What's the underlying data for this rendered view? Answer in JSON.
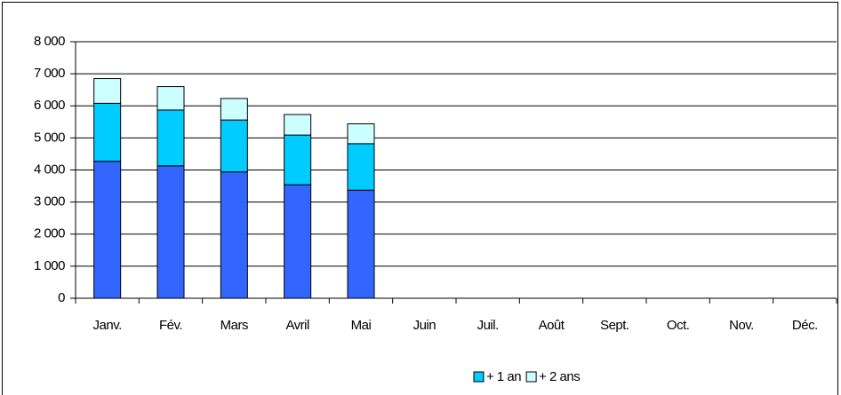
{
  "chart_data": {
    "type": "bar",
    "stacked": true,
    "categories": [
      "Janv.",
      "Fév.",
      "Mars",
      "Avril",
      "Mai",
      "Juin",
      "Juil.",
      "Août",
      "Sept.",
      "Oct.",
      "Nov.",
      "Déc."
    ],
    "series": [
      {
        "color": "#3366ff",
        "values": [
          4270,
          4130,
          3940,
          3540,
          3370,
          null,
          null,
          null,
          null,
          null,
          null,
          null
        ]
      },
      {
        "name": "+ 1 an",
        "color": "#00ccff",
        "values": [
          1810,
          1740,
          1620,
          1550,
          1450,
          null,
          null,
          null,
          null,
          null,
          null,
          null
        ]
      },
      {
        "name": "+ 2 ans",
        "color": "#ccffff",
        "values": [
          770,
          730,
          670,
          640,
          620,
          null,
          null,
          null,
          null,
          null,
          null,
          null
        ]
      }
    ],
    "ylim": [
      0,
      8000
    ],
    "yticks": [
      0,
      {
        "value": 1000,
        "label": "1 000"
      },
      {
        "value": 2000,
        "label": "2 000"
      },
      {
        "value": 3000,
        "label": "3 000"
      },
      {
        "value": 4000,
        "label": "4 000"
      },
      {
        "value": 5000,
        "label": "5 000"
      },
      {
        "value": 6000,
        "label": "6 000"
      },
      {
        "value": 7000,
        "label": "7 000"
      },
      {
        "value": 8000,
        "label": "8 000"
      }
    ],
    "grid": true,
    "legend": "bottom"
  }
}
